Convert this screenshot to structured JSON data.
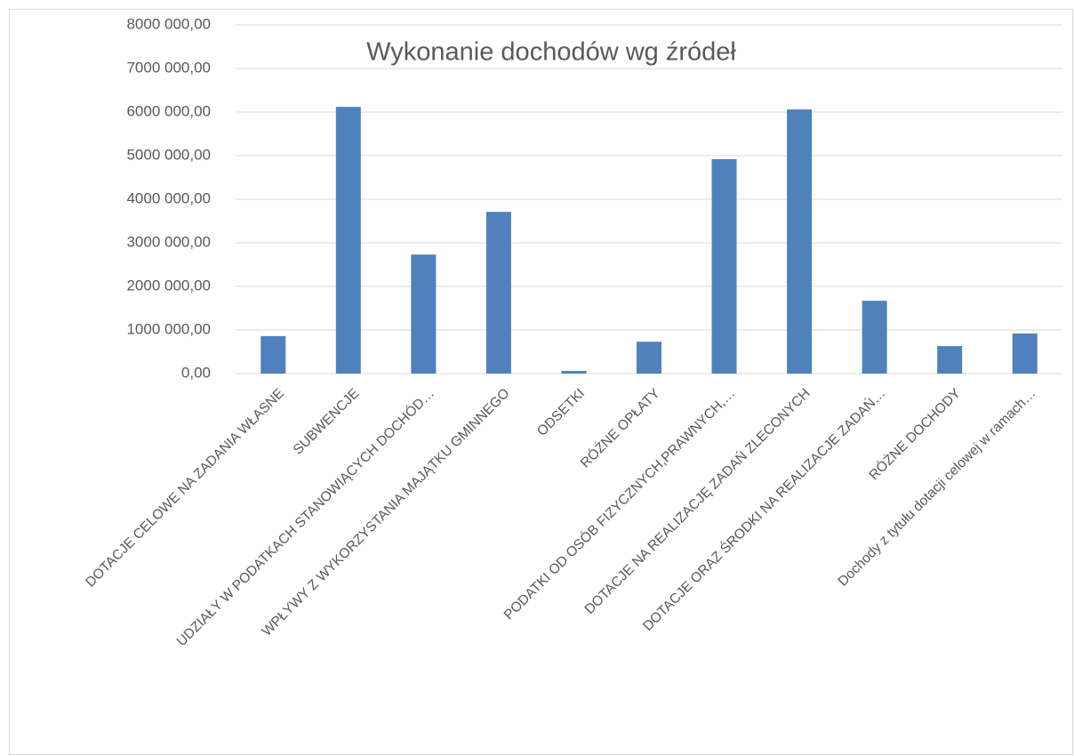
{
  "chart_data": {
    "type": "bar",
    "title": "Wykonanie dochodów wg źródeł",
    "categories": [
      "DOTACJE CELOWE NA ZADANIA WŁASNE",
      "SUBWENCJE",
      "UDZIAŁY W PODATKACH STANOWIĄCYCH DOCHÓD…",
      "WPŁYWY Z WYKORZYSTANIA MAJĄTKU GMINNEGO",
      "ODSETKI",
      "RÓŻNE OPŁATY",
      "PODATKI OD OSÓB FIZYCZNYCH,PRAWNYCH,…",
      "DOTACJE NA REALIZACJĘ ZADAŃ ZLECONYCH",
      "DOTACJE ORAZ ŚRODKI NA REALIZACJE ZADAŃ…",
      "RÓŻNE DOCHODY",
      "Dochody z tytułu dotacji celowej w ramach…"
    ],
    "values": [
      860000,
      6120000,
      2730000,
      3710000,
      60000,
      730000,
      4920000,
      6060000,
      1670000,
      630000,
      920000
    ],
    "color": "#4f81bd",
    "ylim": [
      0,
      8000000
    ],
    "yticks": [
      {
        "value": 0,
        "label": "0,00"
      },
      {
        "value": 1000000,
        "label": "1000 000,00"
      },
      {
        "value": 2000000,
        "label": "2000 000,00"
      },
      {
        "value": 3000000,
        "label": "3000 000,00"
      },
      {
        "value": 4000000,
        "label": "4000 000,00"
      },
      {
        "value": 5000000,
        "label": "5000 000,00"
      },
      {
        "value": 6000000,
        "label": "6000 000,00"
      },
      {
        "value": 7000000,
        "label": "7000 000,00"
      },
      {
        "value": 8000000,
        "label": "8000 000,00"
      }
    ],
    "grid": true
  }
}
